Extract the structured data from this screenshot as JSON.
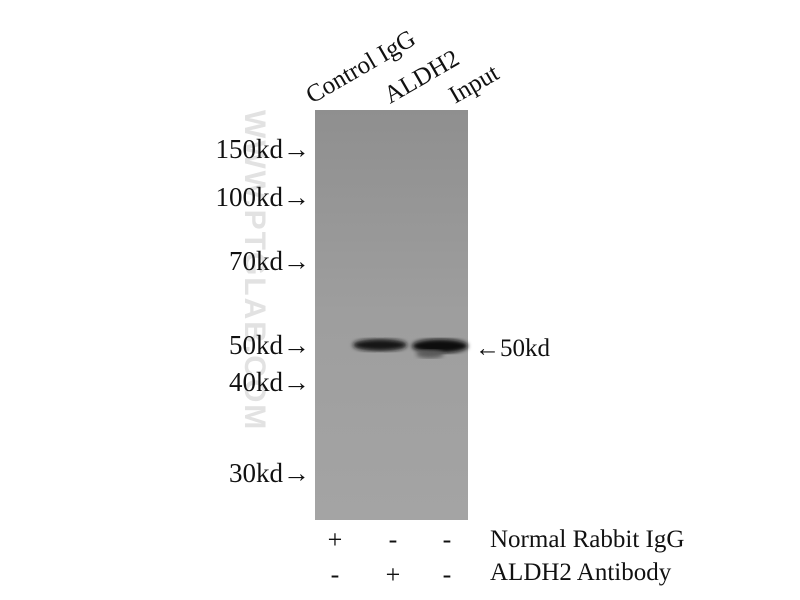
{
  "lanes": [
    "Control IgG",
    "ALDH2",
    "Input"
  ],
  "markers": [
    "150kd→",
    "100kd→",
    "70kd→",
    "50kd→",
    "40kd→",
    "30kd→"
  ],
  "band_label": "←50kd",
  "watermark": "WWW.PTGLAB.COM",
  "conditions": [
    {
      "signs": [
        "+",
        "-",
        "-"
      ],
      "label": "Normal Rabbit IgG"
    },
    {
      "signs": [
        "-",
        "+",
        "-"
      ],
      "label": "ALDH2 Antibody"
    }
  ]
}
